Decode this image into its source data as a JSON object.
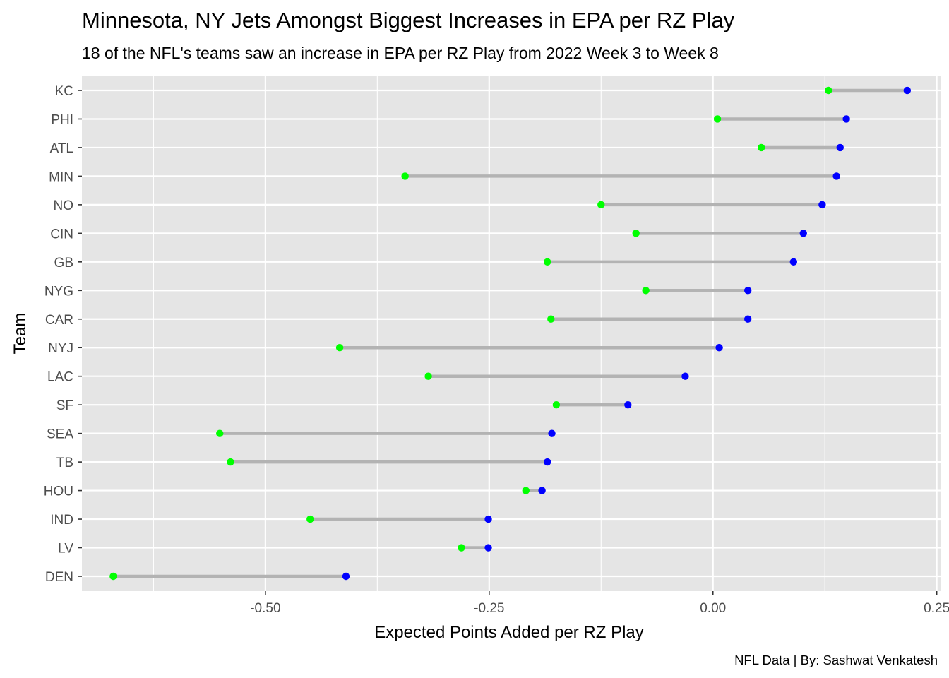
{
  "chart_data": {
    "type": "dumbbell",
    "title": "Minnesota, NY Jets Amongst Biggest Increases in EPA per RZ Play",
    "subtitle": "18 of the NFL's teams saw an increase in EPA per RZ Play from 2022 Week 3 to Week 8",
    "xlabel": "Expected Points Added per RZ Play",
    "ylabel": "Team",
    "caption": "NFL Data | By: Sashwat Venkatesh",
    "xlim": [
      -0.705,
      0.255
    ],
    "x_ticks": [
      -0.5,
      -0.25,
      0.0,
      0.25
    ],
    "x_tick_labels": [
      "-0.50",
      "-0.25",
      "0.00",
      "0.25"
    ],
    "grid": true,
    "series": [
      {
        "key": "week3",
        "color": "#00ff00"
      },
      {
        "key": "week8",
        "color": "#0000ff"
      }
    ],
    "teams": [
      "KC",
      "PHI",
      "ATL",
      "MIN",
      "NO",
      "CIN",
      "GB",
      "NYG",
      "CAR",
      "NYJ",
      "LAC",
      "SF",
      "SEA",
      "TB",
      "HOU",
      "IND",
      "LV",
      "DEN"
    ],
    "week3": [
      0.129,
      0.005,
      0.054,
      -0.344,
      -0.125,
      -0.086,
      -0.185,
      -0.075,
      -0.181,
      -0.417,
      -0.318,
      -0.175,
      -0.551,
      -0.539,
      -0.209,
      -0.45,
      -0.281,
      -0.67
    ],
    "week8": [
      0.217,
      0.149,
      0.142,
      0.138,
      0.122,
      0.101,
      0.09,
      0.039,
      0.039,
      0.007,
      -0.031,
      -0.095,
      -0.18,
      -0.185,
      -0.191,
      -0.251,
      -0.251,
      -0.41
    ],
    "segment_color": "#b3b3b3",
    "panel_color": "#e5e5e5",
    "grid_color": "#ffffff"
  }
}
